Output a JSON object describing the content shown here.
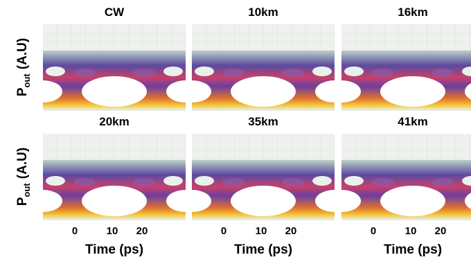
{
  "panels": [
    {
      "title": "CW"
    },
    {
      "title": "10km"
    },
    {
      "title": "16km"
    },
    {
      "title": "20km"
    },
    {
      "title": "35km"
    },
    {
      "title": "41km"
    }
  ],
  "y_axis_label": {
    "main": "P",
    "subscript": "out",
    "unit": "(A.U)"
  },
  "x_ticks": [
    "0",
    "10",
    "20"
  ],
  "x_axis_label": "Time (ps)"
}
